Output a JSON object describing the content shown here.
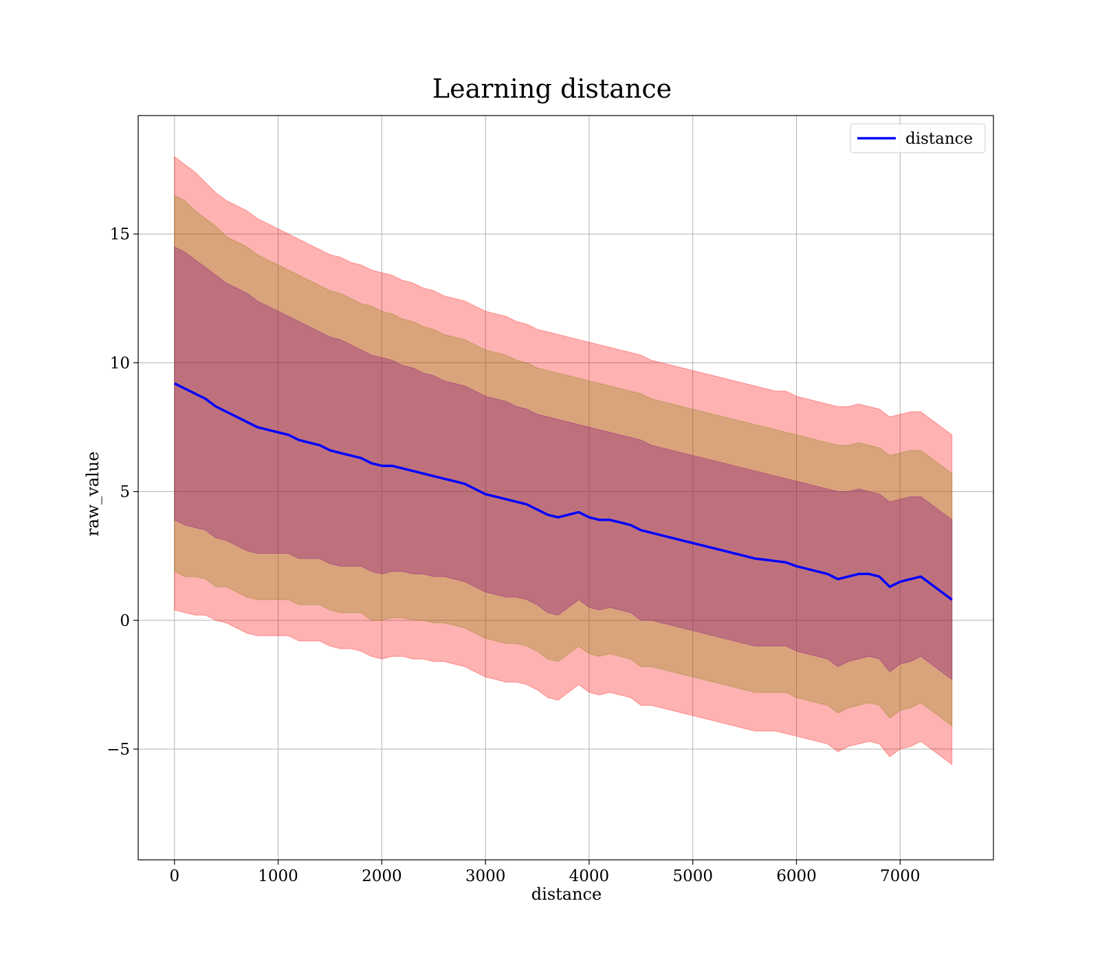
{
  "chart_data": {
    "type": "line",
    "title": "Learning distance",
    "xlabel": "distance",
    "ylabel": "raw_value",
    "xlim": [
      -350,
      7900
    ],
    "ylim": [
      -9.3,
      19.6
    ],
    "x_ticks": [
      0,
      1000,
      2000,
      3000,
      4000,
      5000,
      6000,
      7000
    ],
    "x_tick_labels": [
      "0",
      "1000",
      "2000",
      "3000",
      "4000",
      "5000",
      "6000",
      "7000"
    ],
    "y_ticks": [
      -5,
      0,
      5,
      10,
      15
    ],
    "y_tick_labels": [
      "−5",
      "0",
      "5",
      "10",
      "15"
    ],
    "grid": true,
    "legend": {
      "position": "top-right",
      "entries": [
        "distance"
      ]
    },
    "colors": {
      "line": "#0000ff",
      "band_outer": "#ff0000",
      "band_mid": "#808000",
      "band_inner": "#800080",
      "grid": "#b0b0b0"
    },
    "series": [
      {
        "name": "distance",
        "x": [
          0,
          100,
          200,
          300,
          400,
          500,
          600,
          700,
          800,
          900,
          1000,
          1100,
          1200,
          1300,
          1400,
          1500,
          1600,
          1700,
          1800,
          1900,
          2000,
          2100,
          2200,
          2300,
          2400,
          2500,
          2600,
          2700,
          2800,
          2900,
          3000,
          3100,
          3200,
          3300,
          3400,
          3500,
          3600,
          3700,
          3800,
          3900,
          4000,
          4100,
          4200,
          4300,
          4400,
          4500,
          4600,
          4700,
          4800,
          4900,
          5000,
          5100,
          5200,
          5300,
          5400,
          5500,
          5600,
          5700,
          5800,
          5900,
          6000,
          6100,
          6200,
          6300,
          6400,
          6500,
          6600,
          6700,
          6800,
          6900,
          7000,
          7100,
          7200,
          7300,
          7400,
          7500
        ],
        "values": [
          9.2,
          9.0,
          8.8,
          8.6,
          8.3,
          8.1,
          7.9,
          7.7,
          7.5,
          7.4,
          7.3,
          7.2,
          7.0,
          6.9,
          6.8,
          6.6,
          6.5,
          6.4,
          6.3,
          6.1,
          6.0,
          6.0,
          5.9,
          5.8,
          5.7,
          5.6,
          5.5,
          5.4,
          5.3,
          5.1,
          4.9,
          4.8,
          4.7,
          4.6,
          4.5,
          4.3,
          4.1,
          4.0,
          4.1,
          4.2,
          4.0,
          3.9,
          3.9,
          3.8,
          3.7,
          3.5,
          3.4,
          3.3,
          3.2,
          3.1,
          3.0,
          2.9,
          2.8,
          2.7,
          2.6,
          2.5,
          2.4,
          2.35,
          2.3,
          2.25,
          2.1,
          2.0,
          1.9,
          1.8,
          1.6,
          1.7,
          1.8,
          1.8,
          1.7,
          1.3,
          1.5,
          1.6,
          1.7,
          1.4,
          1.1,
          0.8
        ],
        "bands": [
          {
            "name": "outer",
            "upper": [
              18.0,
              17.7,
              17.4,
              17.0,
              16.6,
              16.3,
              16.1,
              15.9,
              15.6,
              15.4,
              15.2,
              15.0,
              14.8,
              14.6,
              14.4,
              14.2,
              14.1,
              13.9,
              13.8,
              13.6,
              13.5,
              13.4,
              13.2,
              13.1,
              12.9,
              12.8,
              12.6,
              12.5,
              12.4,
              12.2,
              12.0,
              11.9,
              11.8,
              11.6,
              11.5,
              11.3,
              11.2,
              11.1,
              11.0,
              10.9,
              10.8,
              10.7,
              10.6,
              10.5,
              10.4,
              10.3,
              10.1,
              10.0,
              9.9,
              9.8,
              9.7,
              9.6,
              9.5,
              9.4,
              9.3,
              9.2,
              9.1,
              9.0,
              8.9,
              8.9,
              8.7,
              8.6,
              8.5,
              8.4,
              8.3,
              8.3,
              8.4,
              8.3,
              8.2,
              7.9,
              8.0,
              8.1,
              8.1,
              7.8,
              7.5,
              7.2
            ]
          },
          {
            "name": "mid",
            "upper": [
              16.5,
              16.3,
              15.9,
              15.6,
              15.3,
              14.9,
              14.7,
              14.5,
              14.2,
              14.0,
              13.8,
              13.6,
              13.4,
              13.2,
              13.0,
              12.8,
              12.7,
              12.5,
              12.3,
              12.2,
              12.0,
              11.9,
              11.7,
              11.6,
              11.4,
              11.3,
              11.1,
              11.0,
              10.9,
              10.7,
              10.5,
              10.4,
              10.3,
              10.1,
              10.0,
              9.8,
              9.7,
              9.6,
              9.5,
              9.4,
              9.3,
              9.2,
              9.1,
              9.0,
              8.9,
              8.8,
              8.6,
              8.5,
              8.4,
              8.3,
              8.2,
              8.1,
              8.0,
              7.9,
              7.8,
              7.7,
              7.6,
              7.5,
              7.4,
              7.3,
              7.2,
              7.1,
              7.0,
              6.9,
              6.8,
              6.8,
              6.9,
              6.8,
              6.7,
              6.4,
              6.5,
              6.6,
              6.6,
              6.3,
              6.0,
              5.7
            ]
          },
          {
            "name": "inner",
            "upper": [
              14.5,
              14.3,
              14.0,
              13.7,
              13.4,
              13.1,
              12.9,
              12.7,
              12.4,
              12.2,
              12.0,
              11.8,
              11.6,
              11.4,
              11.2,
              11.0,
              10.9,
              10.7,
              10.5,
              10.3,
              10.2,
              10.1,
              9.9,
              9.8,
              9.6,
              9.5,
              9.3,
              9.2,
              9.1,
              8.9,
              8.7,
              8.6,
              8.5,
              8.3,
              8.2,
              8.0,
              7.9,
              7.8,
              7.7,
              7.6,
              7.5,
              7.4,
              7.3,
              7.2,
              7.1,
              7.0,
              6.8,
              6.7,
              6.6,
              6.5,
              6.4,
              6.3,
              6.2,
              6.1,
              6.0,
              5.9,
              5.8,
              5.7,
              5.6,
              5.5,
              5.4,
              5.3,
              5.2,
              5.1,
              5.0,
              5.0,
              5.1,
              5.0,
              4.9,
              4.6,
              4.7,
              4.8,
              4.8,
              4.5,
              4.2,
              3.9
            ]
          }
        ]
      }
    ]
  }
}
